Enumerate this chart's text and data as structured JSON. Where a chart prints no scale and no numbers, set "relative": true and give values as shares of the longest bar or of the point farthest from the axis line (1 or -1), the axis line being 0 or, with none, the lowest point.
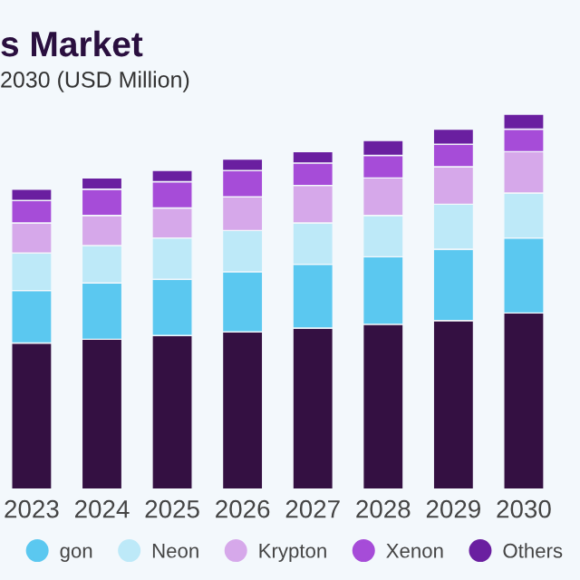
{
  "chart_data": {
    "type": "bar",
    "title": "s Market",
    "subtitle": "2030 (USD Million)",
    "relative": true,
    "stacked": true,
    "legend": "bottom",
    "grid": false,
    "categories": [
      "2023",
      "2024",
      "2025",
      "2026",
      "2027",
      "2028",
      "2029",
      "2030"
    ],
    "series": [
      {
        "color": "#341042",
        "values": [
          0.39,
          0.4,
          0.41,
          0.42,
          0.43,
          0.44,
          0.45,
          0.47
        ]
      },
      {
        "name": "gon",
        "color": "#5bc8f0",
        "values": [
          0.14,
          0.15,
          0.15,
          0.16,
          0.17,
          0.18,
          0.19,
          0.2
        ]
      },
      {
        "name": "Neon",
        "color": "#bde9f8",
        "values": [
          0.1,
          0.1,
          0.11,
          0.11,
          0.11,
          0.11,
          0.12,
          0.12
        ]
      },
      {
        "name": "Krypton",
        "color": "#d6a8ea",
        "values": [
          0.08,
          0.08,
          0.08,
          0.09,
          0.1,
          0.1,
          0.1,
          0.11
        ]
      },
      {
        "name": "Xenon",
        "color": "#a64cd8",
        "values": [
          0.06,
          0.07,
          0.07,
          0.07,
          0.06,
          0.06,
          0.06,
          0.06
        ]
      },
      {
        "name": "Others",
        "color": "#6a1fa0",
        "values": [
          0.03,
          0.03,
          0.03,
          0.03,
          0.03,
          0.04,
          0.04,
          0.04
        ]
      }
    ]
  }
}
